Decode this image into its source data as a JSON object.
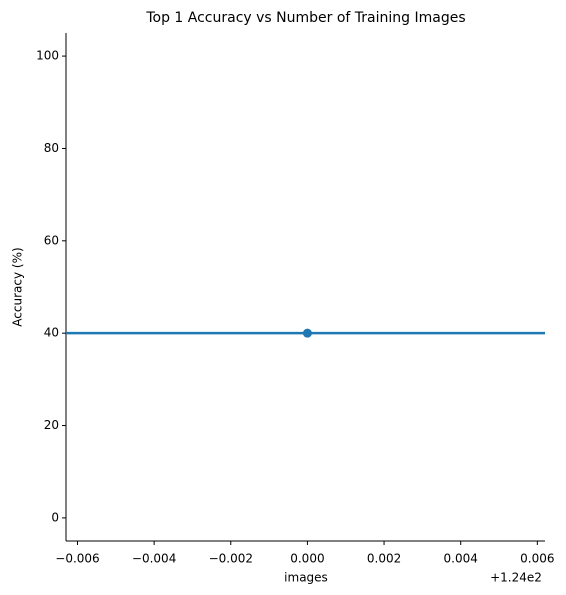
{
  "chart_data": {
    "type": "scatter",
    "title": "Top 1 Accuracy vs Number of Training Images",
    "x_label": "images",
    "y_label": "Accuracy (%)",
    "x_offset_label": "+1.24e2",
    "series": [
      {
        "color": "#1f77b4",
        "x": [
          124
        ],
        "values": [
          40
        ]
      }
    ],
    "trend_line": {
      "color": "#1f77b4",
      "value": 40
    },
    "xlim": [
      123.9937,
      124.0062
    ],
    "xticks": [
      {
        "value": 123.994,
        "label": "−0.006"
      },
      {
        "value": 123.996,
        "label": "−0.004"
      },
      {
        "value": 123.998,
        "label": "−0.002"
      },
      {
        "value": 124.0,
        "label": "0.000"
      },
      {
        "value": 124.002,
        "label": "0.002"
      },
      {
        "value": 124.004,
        "label": "0.004"
      },
      {
        "value": 124.006,
        "label": "0.006"
      }
    ],
    "ylim": [
      -5,
      105
    ],
    "yticks": [
      0,
      20,
      40,
      60,
      80,
      100
    ],
    "grid": false
  }
}
